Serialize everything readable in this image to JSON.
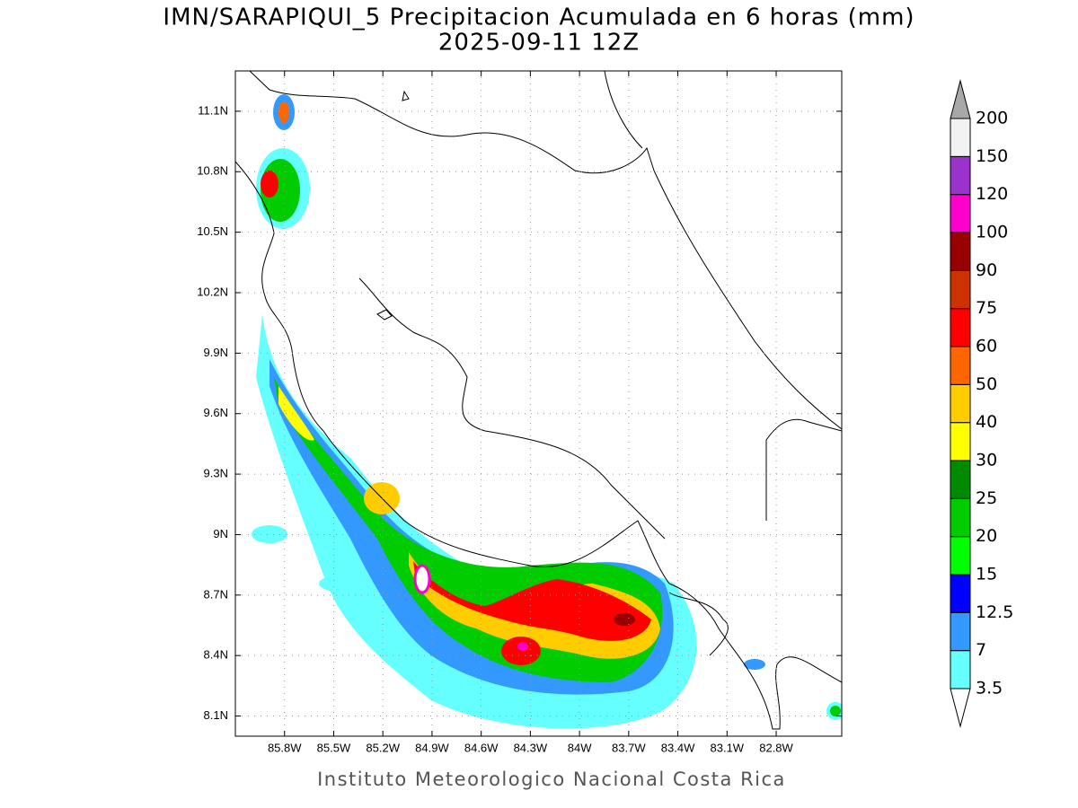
{
  "title": "IMN/SARAPIQUI_5 Precipitacion Acumulada en 6 horas (mm)",
  "subtitle": "2025-09-11 12Z",
  "footer": "Instituto Meteorologico Nacional Costa Rica",
  "map": {
    "xlim": [
      -86.1,
      -82.4
    ],
    "ylim": [
      8.0,
      11.3
    ],
    "xticks": [
      {
        "value": -85.8,
        "label": "85.8W"
      },
      {
        "value": -85.5,
        "label": "85.5W"
      },
      {
        "value": -85.2,
        "label": "85.2W"
      },
      {
        "value": -84.9,
        "label": "84.9W"
      },
      {
        "value": -84.6,
        "label": "84.6W"
      },
      {
        "value": -84.3,
        "label": "84.3W"
      },
      {
        "value": -84,
        "label": "84W"
      },
      {
        "value": -83.7,
        "label": "83.7W"
      },
      {
        "value": -83.4,
        "label": "83.4W"
      },
      {
        "value": -83.1,
        "label": "83.1W"
      },
      {
        "value": -82.8,
        "label": "82.8W"
      }
    ],
    "yticks": [
      {
        "value": 8.1,
        "label": "8.1N"
      },
      {
        "value": 8.4,
        "label": "8.4N"
      },
      {
        "value": 8.7,
        "label": "8.7N"
      },
      {
        "value": 9,
        "label": "9N"
      },
      {
        "value": 9.3,
        "label": "9.3N"
      },
      {
        "value": 9.6,
        "label": "9.6N"
      },
      {
        "value": 9.9,
        "label": "9.9N"
      },
      {
        "value": 10.2,
        "label": "10.2N"
      },
      {
        "value": 10.5,
        "label": "10.5N"
      },
      {
        "value": 10.8,
        "label": "10.8N"
      },
      {
        "value": 11.1,
        "label": "11.1N"
      }
    ],
    "grid": true
  },
  "colorbar": {
    "levels": [
      3.5,
      7,
      12.5,
      15,
      20,
      25,
      30,
      40,
      50,
      60,
      75,
      90,
      100,
      120,
      150,
      200
    ],
    "colors": [
      "#66ffff",
      "#3399ff",
      "#0000ff",
      "#00ff00",
      "#00cc00",
      "#008a00",
      "#ffff00",
      "#ffcc00",
      "#ff6600",
      "#ff0000",
      "#cc3300",
      "#990000",
      "#ff00cc",
      "#9933cc",
      "#f2f2f2"
    ],
    "below_color": "#ffffff",
    "above_color": "#a8a8a8"
  }
}
